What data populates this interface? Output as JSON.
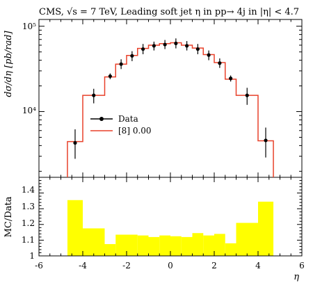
{
  "title": "CMS, √s = 7 TeV, Leading soft jet η in pp→ 4j in |η| < 4.7",
  "colors": {
    "data": "#000000",
    "mc": "#e8412a",
    "ratio_fill": "#ffff00",
    "frame": "#000000"
  },
  "chart_data": [
    {
      "type": "line",
      "xlabel": "η",
      "ylabel": "dσ/dη [pb/rad]",
      "xlim": [
        -6,
        6
      ],
      "ylim": [
        1700,
        120000
      ],
      "yscale": "log",
      "ytick_labels": [
        "10⁴",
        "10⁵"
      ],
      "legend": {
        "placement": "left",
        "entries": [
          "Data",
          "[8] 0.00"
        ]
      },
      "bin_edges": [
        -4.7,
        -4.0,
        -3.0,
        -2.5,
        -2.0,
        -1.5,
        -1.0,
        -0.5,
        0.0,
        0.5,
        1.0,
        1.5,
        2.0,
        2.5,
        3.0,
        4.0,
        4.7
      ],
      "series": [
        {
          "name": "Data",
          "x": [
            -4.35,
            -3.5,
            -2.75,
            -2.25,
            -1.75,
            -1.25,
            -0.75,
            -0.25,
            0.25,
            0.75,
            1.25,
            1.75,
            2.25,
            2.75,
            3.5,
            4.35
          ],
          "values": [
            4300,
            15500,
            26000,
            36000,
            45000,
            54000,
            59000,
            61000,
            63000,
            59000,
            54000,
            46000,
            37000,
            24500,
            15500,
            4600
          ],
          "err_low": [
            1500,
            3000,
            2000,
            4500,
            6000,
            7000,
            7000,
            7000,
            8000,
            7000,
            7000,
            6000,
            4500,
            2000,
            3500,
            1700
          ],
          "err_high": [
            1900,
            3000,
            2000,
            5000,
            6000,
            8000,
            7000,
            8000,
            9000,
            8000,
            8000,
            6000,
            5000,
            2000,
            3500,
            1900
          ]
        },
        {
          "name": "[8] 0.00",
          "x": [
            -4.35,
            -3.5,
            -2.75,
            -2.25,
            -1.75,
            -1.25,
            -0.75,
            -0.25,
            0.25,
            0.75,
            1.25,
            1.75,
            2.25,
            2.75,
            3.5,
            4.35
          ],
          "values": [
            4450,
            15500,
            25500,
            36000,
            45500,
            55000,
            60000,
            62500,
            64000,
            60000,
            55500,
            46500,
            37500,
            24000,
            15500,
            4550
          ]
        }
      ]
    },
    {
      "type": "bar",
      "xlabel": "η",
      "ylabel": "MC/Data",
      "xlim": [
        -6,
        6
      ],
      "ylim": [
        1,
        1.5
      ],
      "xtick_labels": [
        "-6",
        "-4",
        "-2",
        "0",
        "2",
        "4",
        "6"
      ],
      "ytick_labels": [
        "1",
        "1.1",
        "1.2",
        "1.3",
        "1.4"
      ],
      "bin_edges": [
        -4.7,
        -4.0,
        -3.0,
        -2.5,
        -2.0,
        -1.5,
        -1.0,
        -0.5,
        0.0,
        0.5,
        1.0,
        1.5,
        2.0,
        2.5,
        3.0,
        4.0,
        4.7
      ],
      "values": [
        1.355,
        1.175,
        1.075,
        1.135,
        1.135,
        1.13,
        1.12,
        1.13,
        1.125,
        1.12,
        1.145,
        1.13,
        1.14,
        1.08,
        1.21,
        1.345
      ]
    }
  ]
}
